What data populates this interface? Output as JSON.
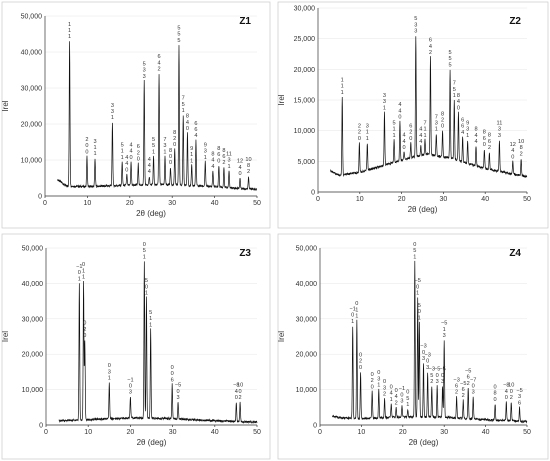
{
  "chart_data": [
    {
      "type": "line",
      "label": "Z1",
      "xlabel": "2θ (deg)",
      "ylabel": "Irel",
      "xlim": [
        0,
        50
      ],
      "ylim": [
        0,
        50000
      ],
      "xticks": [
        "0",
        "10",
        "20",
        "30",
        "40",
        "50"
      ],
      "yticks": [
        "0",
        "10,000",
        "20,000",
        "30,000",
        "40,000",
        "50,000"
      ],
      "baseline": [
        [
          3,
          4500
        ],
        [
          5,
          2800
        ],
        [
          10,
          2600
        ],
        [
          20,
          3000
        ],
        [
          30,
          3200
        ],
        [
          40,
          2600
        ],
        [
          50,
          1800
        ]
      ],
      "peaks": [
        {
          "x": 5.8,
          "y": 43000,
          "hkl": [
            "1",
            "1",
            "1"
          ]
        },
        {
          "x": 9.9,
          "y": 11000,
          "hkl": [
            "2",
            "0",
            "0"
          ]
        },
        {
          "x": 11.8,
          "y": 10500,
          "hkl": [
            "3",
            "1",
            "1"
          ]
        },
        {
          "x": 15.9,
          "y": 20500,
          "hkl": [
            "3",
            "3",
            "1"
          ]
        },
        {
          "x": 18.2,
          "y": 9500,
          "hkl": [
            "5",
            "1",
            "1"
          ]
        },
        {
          "x": 19.3,
          "y": 6000,
          "hkl": [
            "4",
            "4",
            "0"
          ]
        },
        {
          "x": 20.3,
          "y": 9500,
          "hkl": [
            "4",
            "4",
            "0"
          ]
        },
        {
          "x": 22.0,
          "y": 9000,
          "hkl": [
            "6",
            "2",
            "0"
          ]
        },
        {
          "x": 23.4,
          "y": 32000,
          "hkl": [
            "5",
            "3",
            "3"
          ]
        },
        {
          "x": 24.6,
          "y": 5500,
          "hkl": [
            "4",
            "4",
            "4"
          ]
        },
        {
          "x": 25.6,
          "y": 11000,
          "hkl": [
            "5",
            "5",
            "1"
          ]
        },
        {
          "x": 26.9,
          "y": 34000,
          "hkl": [
            "6",
            "4",
            "2"
          ]
        },
        {
          "x": 28.3,
          "y": 11000,
          "hkl": [
            "7",
            "3",
            "1"
          ]
        },
        {
          "x": 29.6,
          "y": 8000,
          "hkl": [
            "8",
            "0",
            "0"
          ]
        },
        {
          "x": 30.6,
          "y": 13000,
          "hkl": [
            "8",
            "2",
            "0"
          ]
        },
        {
          "x": 31.6,
          "y": 42000,
          "hkl": [
            "5",
            "5",
            "5"
          ]
        },
        {
          "x": 32.6,
          "y": 22500,
          "hkl": [
            "7",
            "5",
            "1"
          ]
        },
        {
          "x": 33.6,
          "y": 17500,
          "hkl": [
            "8",
            "4",
            "0"
          ]
        },
        {
          "x": 34.6,
          "y": 8500,
          "hkl": [
            "9",
            "1",
            "1"
          ]
        },
        {
          "x": 35.6,
          "y": 15500,
          "hkl": [
            "6",
            "6",
            "4"
          ]
        },
        {
          "x": 37.8,
          "y": 9500,
          "hkl": [
            "9",
            "3",
            "1"
          ]
        },
        {
          "x": 39.6,
          "y": 7000,
          "hkl": [
            "8",
            "4",
            "4"
          ]
        },
        {
          "x": 41.0,
          "y": 8500,
          "hkl": [
            "8",
            "6",
            "0"
          ]
        },
        {
          "x": 42.2,
          "y": 8000,
          "hkl": [
            "8",
            "6",
            "2"
          ]
        },
        {
          "x": 43.4,
          "y": 7000,
          "hkl": [
            "11",
            "3",
            "1"
          ]
        },
        {
          "x": 46.0,
          "y": 5000,
          "hkl": [
            "12",
            "4",
            "0"
          ]
        },
        {
          "x": 48.0,
          "y": 5500,
          "hkl": [
            "10",
            "8",
            "2"
          ]
        }
      ]
    },
    {
      "type": "line",
      "label": "Z2",
      "xlabel": "2θ (deg)",
      "ylabel": "Irel",
      "xlim": [
        0,
        50
      ],
      "ylim": [
        0,
        30000
      ],
      "xticks": [
        "0",
        "10",
        "20",
        "30",
        "40",
        "50"
      ],
      "yticks": [
        "0",
        "5,000",
        "10,000",
        "15,000",
        "20,000",
        "25,000",
        "30,000"
      ],
      "baseline": [
        [
          3,
          3500
        ],
        [
          5,
          2700
        ],
        [
          10,
          3200
        ],
        [
          20,
          5200
        ],
        [
          26,
          6200
        ],
        [
          32,
          5500
        ],
        [
          40,
          3800
        ],
        [
          50,
          2500
        ]
      ],
      "peaks": [
        {
          "x": 5.8,
          "y": 15500,
          "hkl": [
            "1",
            "1",
            "1"
          ]
        },
        {
          "x": 9.9,
          "y": 8000,
          "hkl": [
            "2",
            "2",
            "0"
          ]
        },
        {
          "x": 11.8,
          "y": 8000,
          "hkl": [
            "3",
            "1",
            "1"
          ]
        },
        {
          "x": 15.9,
          "y": 13000,
          "hkl": [
            "3",
            "3",
            "1"
          ]
        },
        {
          "x": 18.2,
          "y": 8500,
          "hkl": [
            "5",
            "1",
            "1"
          ]
        },
        {
          "x": 19.6,
          "y": 11500,
          "hkl": [
            "4",
            "4",
            "0"
          ]
        },
        {
          "x": 20.6,
          "y": 6500,
          "hkl": [
            "4",
            "4",
            "0"
          ]
        },
        {
          "x": 22.2,
          "y": 8000,
          "hkl": [
            "6",
            "2",
            "0"
          ]
        },
        {
          "x": 23.4,
          "y": 25500,
          "hkl": [
            "5",
            "3",
            "3"
          ]
        },
        {
          "x": 24.6,
          "y": 7500,
          "hkl": [
            "4",
            "4",
            "4"
          ]
        },
        {
          "x": 25.6,
          "y": 8500,
          "hkl": [
            "7",
            "1",
            "1"
          ]
        },
        {
          "x": 26.9,
          "y": 22000,
          "hkl": [
            "6",
            "4",
            "2"
          ]
        },
        {
          "x": 28.3,
          "y": 9500,
          "hkl": [
            "7",
            "3",
            "1"
          ]
        },
        {
          "x": 29.8,
          "y": 10000,
          "hkl": [
            "8",
            "2",
            "0"
          ]
        },
        {
          "x": 31.6,
          "y": 20000,
          "hkl": [
            "5",
            "5",
            "5"
          ]
        },
        {
          "x": 32.6,
          "y": 15000,
          "hkl": [
            "7",
            "5",
            "1"
          ]
        },
        {
          "x": 33.6,
          "y": 13000,
          "hkl": [
            "8",
            "4",
            "0"
          ]
        },
        {
          "x": 34.6,
          "y": 9000,
          "hkl": [
            "6",
            "6",
            "4"
          ]
        },
        {
          "x": 35.8,
          "y": 8500,
          "hkl": [
            "9",
            "3",
            "1"
          ]
        },
        {
          "x": 37.8,
          "y": 7500,
          "hkl": [
            "8",
            "4",
            "4"
          ]
        },
        {
          "x": 39.8,
          "y": 7000,
          "hkl": [
            "8",
            "6",
            "0"
          ]
        },
        {
          "x": 41.0,
          "y": 6500,
          "hkl": [
            "8",
            "6",
            "2"
          ]
        },
        {
          "x": 43.4,
          "y": 8500,
          "hkl": [
            "11",
            "3",
            "3"
          ]
        },
        {
          "x": 46.6,
          "y": 5000,
          "hkl": [
            "12",
            "4",
            "0"
          ]
        },
        {
          "x": 48.6,
          "y": 5500,
          "hkl": [
            "10",
            "8",
            "2"
          ]
        }
      ]
    },
    {
      "type": "line",
      "label": "Z3",
      "xlabel": "2θ (deg)",
      "ylabel": "Irel",
      "xlim": [
        0,
        50
      ],
      "ylim": [
        0,
        50000
      ],
      "xticks": [
        "0",
        "10",
        "20",
        "30",
        "40",
        "50"
      ],
      "yticks": [
        "0",
        "10,000",
        "20,000",
        "30,000",
        "40,000",
        "50,000"
      ],
      "baseline": [
        [
          3,
          1200
        ],
        [
          10,
          1500
        ],
        [
          20,
          2000
        ],
        [
          30,
          1800
        ],
        [
          40,
          1200
        ],
        [
          50,
          800
        ]
      ],
      "peaks": [
        {
          "x": 7.9,
          "y": 40000,
          "hkl": [
            "−1",
            "0",
            "1"
          ]
        },
        {
          "x": 8.9,
          "y": 40500,
          "hkl": [
            "0",
            "1",
            "1"
          ]
        },
        {
          "x": 9.2,
          "y": 24000,
          "hkl": [
            "0",
            "2",
            "0"
          ]
        },
        {
          "x": 15.0,
          "y": 12000,
          "hkl": [
            "0",
            "3",
            "1"
          ]
        },
        {
          "x": 20.0,
          "y": 8000,
          "hkl": [
            "−1",
            "0",
            "3"
          ]
        },
        {
          "x": 23.3,
          "y": 46500,
          "hkl": [
            "0",
            "5",
            "1"
          ]
        },
        {
          "x": 23.8,
          "y": 36000,
          "hkl": [
            "5",
            "0",
            "1"
          ]
        },
        {
          "x": 24.8,
          "y": 27000,
          "hkl": [
            "5",
            "1",
            "1"
          ]
        },
        {
          "x": 29.9,
          "y": 11500,
          "hkl": [
            "0",
            "0",
            "6"
          ]
        },
        {
          "x": 31.3,
          "y": 6500,
          "hkl": [
            "−5",
            "0",
            "3"
          ]
        },
        {
          "x": 45.1,
          "y": 6500,
          "hkl": [
            "−8",
            "4",
            "0"
          ]
        },
        {
          "x": 46.0,
          "y": 6500,
          "hkl": [
            "10",
            "0",
            "2"
          ]
        }
      ]
    },
    {
      "type": "line",
      "label": "Z4",
      "xlabel": "2θ (deg)",
      "ylabel": "Irel",
      "xlim": [
        0,
        50
      ],
      "ylim": [
        0,
        50000
      ],
      "xticks": [
        "0",
        "10",
        "20",
        "30",
        "40",
        "50"
      ],
      "yticks": [
        "0",
        "10,000",
        "20,000",
        "30,000",
        "40,000",
        "50,000"
      ],
      "baseline": [
        [
          3,
          2500
        ],
        [
          5,
          2000
        ],
        [
          10,
          1800
        ],
        [
          20,
          2300
        ],
        [
          30,
          2200
        ],
        [
          40,
          1500
        ],
        [
          50,
          1000
        ]
      ],
      "peaks": [
        {
          "x": 7.9,
          "y": 28000,
          "hkl": [
            "−1",
            "0",
            "1"
          ]
        },
        {
          "x": 8.9,
          "y": 29500,
          "hkl": [
            "0",
            "1",
            "1"
          ]
        },
        {
          "x": 9.8,
          "y": 15000,
          "hkl": [
            "0",
            "2",
            "0"
          ]
        },
        {
          "x": 12.6,
          "y": 9500,
          "hkl": [
            "0",
            "2",
            "0"
          ]
        },
        {
          "x": 14.2,
          "y": 10000,
          "hkl": [
            "0",
            "3",
            "1"
          ]
        },
        {
          "x": 15.6,
          "y": 7500,
          "hkl": [
            "0",
            "3",
            "2"
          ]
        },
        {
          "x": 17.2,
          "y": 6000,
          "hkl": [
            "0",
            "4",
            "1"
          ]
        },
        {
          "x": 18.4,
          "y": 5000,
          "hkl": [
            "0",
            "4",
            "2"
          ]
        },
        {
          "x": 19.8,
          "y": 5500,
          "hkl": [
            "−1",
            "0",
            "3"
          ]
        },
        {
          "x": 21.2,
          "y": 4500,
          "hkl": [
            "0",
            "5",
            "1"
          ]
        },
        {
          "x": 22.9,
          "y": 46500,
          "hkl": [
            "0",
            "5",
            "1"
          ]
        },
        {
          "x": 23.6,
          "y": 36000,
          "hkl": [
            "−5",
            "0",
            "1"
          ]
        },
        {
          "x": 24.0,
          "y": 29000,
          "hkl": [
            "5",
            "0",
            "1"
          ]
        },
        {
          "x": 25.0,
          "y": 17500,
          "hkl": [
            "−3",
            "0",
            "3"
          ]
        },
        {
          "x": 26.0,
          "y": 15000,
          "hkl": [
            "−3",
            "0",
            "3"
          ]
        },
        {
          "x": 27.0,
          "y": 11000,
          "hkl": [
            "−3",
            "5",
            "2"
          ]
        },
        {
          "x": 28.3,
          "y": 11000,
          "hkl": [
            "−5",
            "0",
            "3"
          ]
        },
        {
          "x": 29.6,
          "y": 11000,
          "hkl": [
            "−5",
            "0",
            "3"
          ]
        },
        {
          "x": 30.0,
          "y": 24000,
          "hkl": [
            "−5",
            "1",
            "3"
          ]
        },
        {
          "x": 33.0,
          "y": 8000,
          "hkl": [
            "−3",
            "6",
            "2"
          ]
        },
        {
          "x": 34.6,
          "y": 7000,
          "hkl": [
            "−5",
            "6",
            "2"
          ]
        },
        {
          "x": 35.8,
          "y": 10500,
          "hkl": [
            "−5",
            "6",
            "2"
          ]
        },
        {
          "x": 37.0,
          "y": 8000,
          "hkl": [
            "−7",
            "0",
            "3"
          ]
        },
        {
          "x": 42.3,
          "y": 6000,
          "hkl": [
            "0",
            "8",
            "0"
          ]
        },
        {
          "x": 45.0,
          "y": 6500,
          "hkl": [
            "−8",
            "4",
            "0"
          ]
        },
        {
          "x": 46.2,
          "y": 6500,
          "hkl": [
            "10",
            "0",
            "2"
          ]
        },
        {
          "x": 48.2,
          "y": 5000,
          "hkl": [
            "−5",
            "3",
            "6"
          ]
        }
      ]
    }
  ]
}
